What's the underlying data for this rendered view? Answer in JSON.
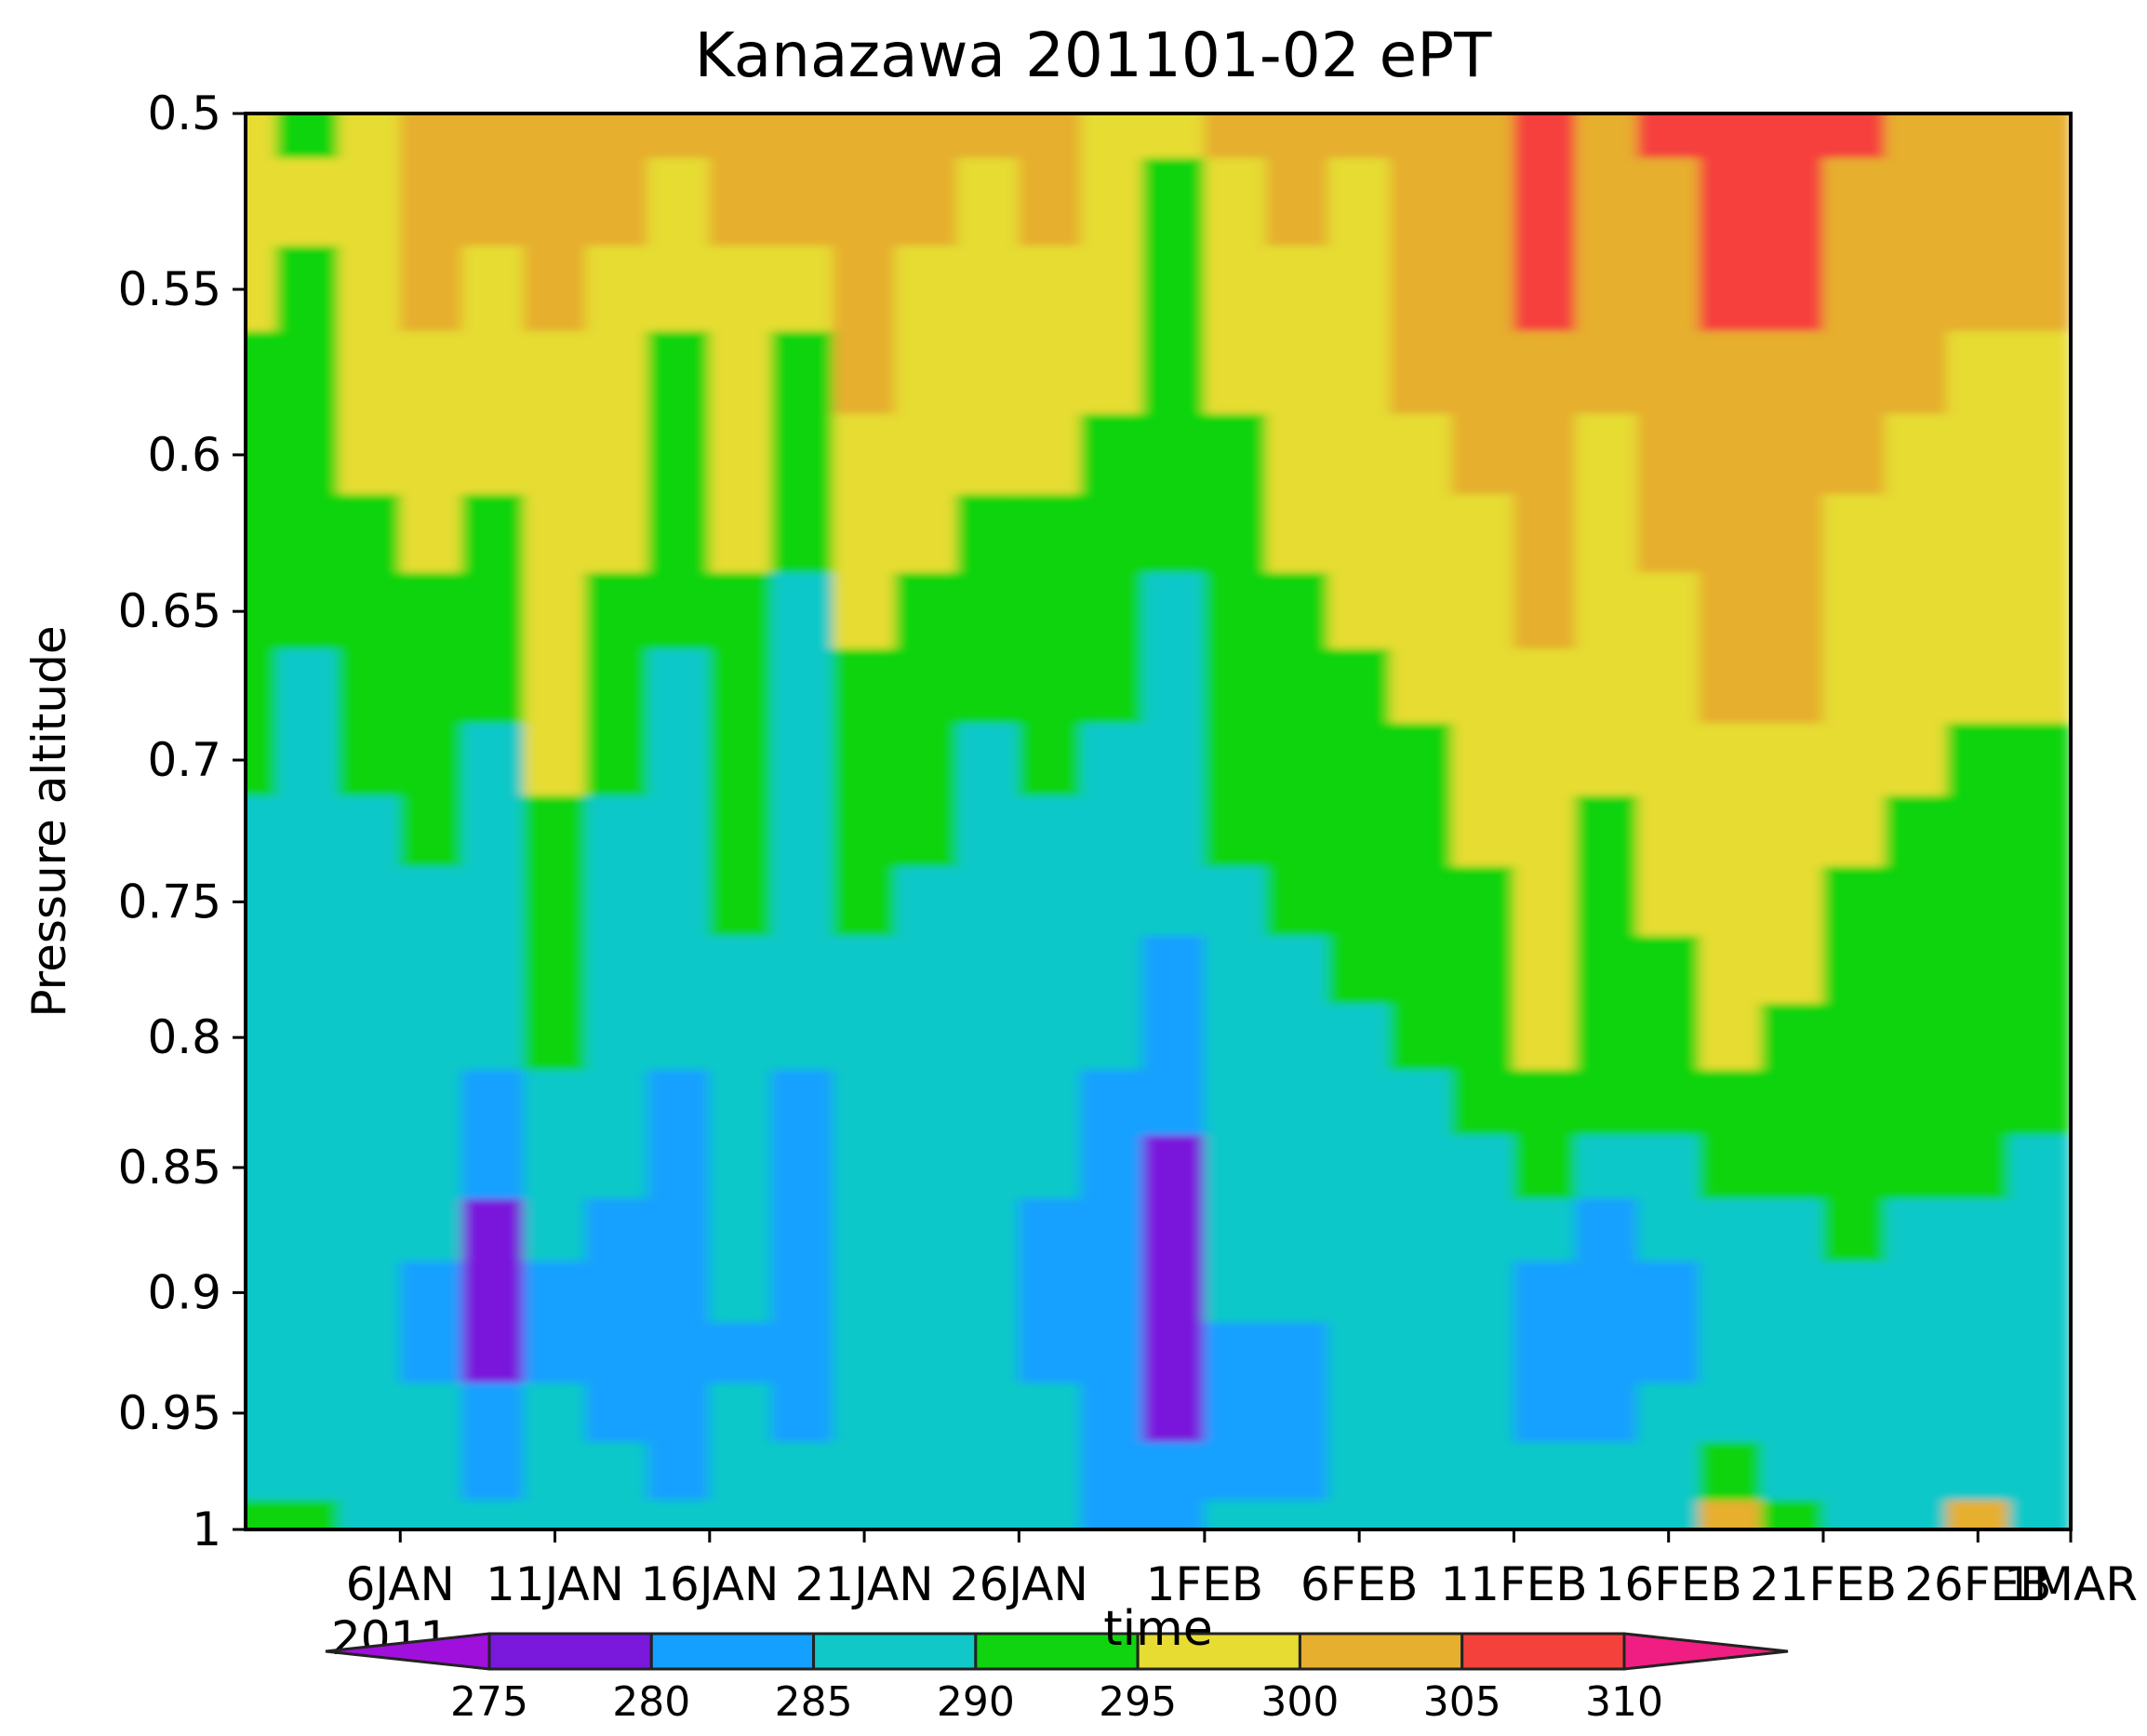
{
  "chart_data": {
    "type": "heatmap",
    "title": "Kanazawa 201101-02 ePT",
    "xlabel": "time",
    "ylabel": "Pressure altitude",
    "x_axis": {
      "type": "date",
      "start": "2011-01-01",
      "end": "2011-03-01",
      "tick_labels": [
        "6JAN",
        "11JAN",
        "16JAN",
        "21JAN",
        "26JAN",
        "1FEB",
        "6FEB",
        "11FEB",
        "16FEB",
        "21FEB",
        "26FEB",
        "1MAR"
      ],
      "tick_dates": [
        "2011-01-06",
        "2011-01-11",
        "2011-01-16",
        "2011-01-21",
        "2011-01-26",
        "2011-02-01",
        "2011-02-06",
        "2011-02-11",
        "2011-02-16",
        "2011-02-21",
        "2011-02-26",
        "2011-03-01"
      ],
      "year_label": "2011"
    },
    "y_axis": {
      "reversed": true,
      "ylim": [
        0.5,
        1
      ],
      "tick_values": [
        0.5,
        0.55,
        0.6,
        0.65,
        0.7,
        0.75,
        0.8,
        0.85,
        0.9,
        0.95,
        1
      ],
      "tick_labels": [
        "0.5",
        "0.55",
        "0.6",
        "0.65",
        "0.7",
        "0.75",
        "0.8",
        "0.85",
        "0.9",
        "0.95",
        "1"
      ]
    },
    "colorbar": {
      "position": "bottom",
      "levels": [
        275,
        280,
        285,
        290,
        295,
        300,
        305,
        310
      ],
      "labels": [
        "275",
        "280",
        "285",
        "290",
        "295",
        "300",
        "305",
        "310"
      ],
      "colors": [
        "#9f10dc",
        "#7a18dc",
        "#14a0ff",
        "#10c8c8",
        "#10d410",
        "#e6dc32",
        "#e6af2d",
        "#f5413c",
        "#f01e82"
      ]
    },
    "grid": false,
    "time_columns": [
      "2011-01-01",
      "2011-01-03",
      "2011-01-05",
      "2011-01-07",
      "2011-01-09",
      "2011-01-11",
      "2011-01-13",
      "2011-01-15",
      "2011-01-17",
      "2011-01-19",
      "2011-01-21",
      "2011-01-23",
      "2011-01-25",
      "2011-01-27",
      "2011-01-29",
      "2011-01-31",
      "2011-02-02",
      "2011-02-04",
      "2011-02-06",
      "2011-02-08",
      "2011-02-10",
      "2011-02-12",
      "2011-02-14",
      "2011-02-16",
      "2011-02-18",
      "2011-02-20",
      "2011-02-22",
      "2011-02-24",
      "2011-02-26",
      "2011-02-28"
    ],
    "pressure_levels": [
      0.5,
      0.525,
      0.55,
      0.575,
      0.6,
      0.625,
      0.65,
      0.675,
      0.7,
      0.725,
      0.75,
      0.775,
      0.8,
      0.825,
      0.85,
      0.875,
      0.9,
      0.925,
      0.95,
      0.975,
      1
    ],
    "ept_values": [
      [
        295,
        294,
        296,
        303,
        302,
        304,
        301,
        300,
        302,
        303,
        304,
        301,
        300,
        302,
        299,
        295,
        300,
        301,
        300,
        302,
        303,
        306,
        303,
        305,
        307,
        306,
        305,
        303,
        301,
        303
      ],
      [
        296,
        295,
        298,
        301,
        301,
        303,
        300,
        298,
        300,
        301,
        303,
        300,
        299,
        300,
        297,
        294,
        299,
        300,
        299,
        301,
        302,
        306,
        302,
        304,
        306,
        305,
        304,
        302,
        300,
        301
      ],
      [
        296,
        293,
        297,
        300,
        299,
        300,
        299,
        296,
        298,
        296,
        302,
        299,
        298,
        298,
        296,
        293,
        296,
        299,
        299,
        301,
        301,
        305,
        301,
        303,
        305,
        305,
        302,
        301,
        300,
        300
      ],
      [
        294,
        292,
        296,
        298,
        298,
        299,
        298,
        294,
        297,
        292,
        300,
        298,
        297,
        297,
        295,
        292,
        295,
        298,
        298,
        300,
        300,
        304,
        300,
        302,
        304,
        304,
        301,
        300,
        299,
        299
      ],
      [
        292,
        291,
        295,
        297,
        296,
        298,
        297,
        292,
        296,
        290,
        299,
        297,
        295,
        296,
        294,
        291,
        294,
        297,
        297,
        299,
        300,
        302,
        299,
        301,
        303,
        303,
        300,
        299,
        298,
        298
      ],
      [
        291,
        290,
        293,
        295,
        293,
        297,
        295,
        291,
        295,
        290,
        297,
        296,
        293,
        294,
        292,
        290,
        293,
        295,
        296,
        298,
        299,
        301,
        298,
        300,
        302,
        302,
        299,
        298,
        297,
        297
      ],
      [
        290,
        290,
        292,
        294,
        291,
        297,
        293,
        290,
        294,
        289,
        295,
        294,
        292,
        292,
        291,
        289,
        293,
        294,
        295,
        296,
        298,
        300,
        297,
        299,
        301,
        301,
        298,
        297,
        296,
        296
      ],
      [
        290,
        289,
        291,
        292,
        290,
        296,
        291,
        289,
        293,
        289,
        293,
        292,
        290,
        291,
        290,
        288,
        292,
        292,
        293,
        295,
        297,
        299,
        296,
        298,
        300,
        300,
        297,
        296,
        295,
        295
      ],
      [
        290,
        289,
        290,
        291,
        289,
        295,
        290,
        288,
        292,
        288,
        292,
        291,
        289,
        290,
        289,
        287,
        291,
        291,
        292,
        294,
        296,
        299,
        295,
        297,
        299,
        299,
        296,
        295,
        294,
        294
      ],
      [
        289,
        288,
        289,
        290,
        288,
        294,
        289,
        288,
        291,
        287,
        291,
        290,
        289,
        289,
        288,
        286,
        290,
        290,
        291,
        293,
        295,
        298,
        294,
        296,
        298,
        298,
        295,
        294,
        293,
        293
      ],
      [
        289,
        288,
        289,
        289,
        287,
        293,
        289,
        287,
        290,
        286,
        290,
        289,
        288,
        288,
        288,
        285,
        289,
        290,
        290,
        292,
        294,
        297,
        293,
        295,
        297,
        297,
        294,
        293,
        293,
        292
      ],
      [
        288,
        287,
        288,
        288,
        286,
        292,
        288,
        287,
        289,
        285,
        289,
        288,
        288,
        288,
        287,
        284,
        289,
        289,
        290,
        291,
        293,
        296,
        293,
        294,
        296,
        296,
        293,
        292,
        292,
        292
      ],
      [
        288,
        287,
        287,
        287,
        285,
        290,
        287,
        286,
        288,
        285,
        288,
        288,
        287,
        287,
        286,
        283,
        288,
        288,
        289,
        290,
        292,
        295,
        292,
        293,
        295,
        294,
        293,
        292,
        292,
        291
      ],
      [
        288,
        286,
        287,
        286,
        283,
        288,
        286,
        284,
        287,
        284,
        287,
        287,
        287,
        286,
        283,
        281,
        287,
        287,
        288,
        289,
        291,
        293,
        291,
        290,
        293,
        293,
        292,
        291,
        291,
        290
      ],
      [
        288,
        286,
        286,
        285,
        281,
        286,
        285,
        282,
        286,
        283,
        286,
        286,
        286,
        285,
        282,
        279,
        286,
        286,
        287,
        288,
        289,
        290,
        286,
        287,
        291,
        291,
        291,
        290,
        290,
        289
      ],
      [
        287,
        285,
        286,
        285,
        279,
        285,
        284,
        281,
        285,
        281,
        286,
        285,
        286,
        284,
        281,
        278,
        285,
        286,
        286,
        287,
        287,
        286,
        283,
        285,
        289,
        289,
        290,
        289,
        288,
        288
      ],
      [
        287,
        285,
        285,
        284,
        279,
        284,
        283,
        280,
        285,
        282,
        285,
        285,
        285,
        284,
        280,
        278,
        285,
        285,
        286,
        286,
        286,
        284,
        282,
        284,
        288,
        288,
        289,
        288,
        287,
        287
      ],
      [
        287,
        285,
        285,
        284,
        279,
        284,
        283,
        281,
        284,
        283,
        285,
        285,
        285,
        284,
        280,
        278,
        284,
        284,
        285,
        285,
        286,
        284,
        282,
        284,
        288,
        287,
        288,
        287,
        286,
        286
      ],
      [
        286,
        286,
        286,
        285,
        280,
        285,
        284,
        282,
        285,
        283,
        285,
        285,
        286,
        285,
        281,
        279,
        284,
        283,
        285,
        285,
        285,
        284,
        283,
        285,
        288,
        287,
        287,
        286,
        286,
        285
      ],
      [
        288,
        288,
        287,
        286,
        283,
        287,
        286,
        284,
        286,
        285,
        286,
        286,
        287,
        286,
        283,
        280,
        283,
        284,
        286,
        286,
        286,
        285,
        285,
        286,
        290,
        288,
        288,
        288,
        287,
        286
      ],
      [
        290,
        290,
        288,
        287,
        285,
        288,
        287,
        286,
        287,
        286,
        287,
        287,
        288,
        287,
        284,
        281,
        285,
        285,
        287,
        287,
        287,
        286,
        286,
        287,
        300,
        290,
        289,
        289,
        300,
        287
      ]
    ]
  }
}
